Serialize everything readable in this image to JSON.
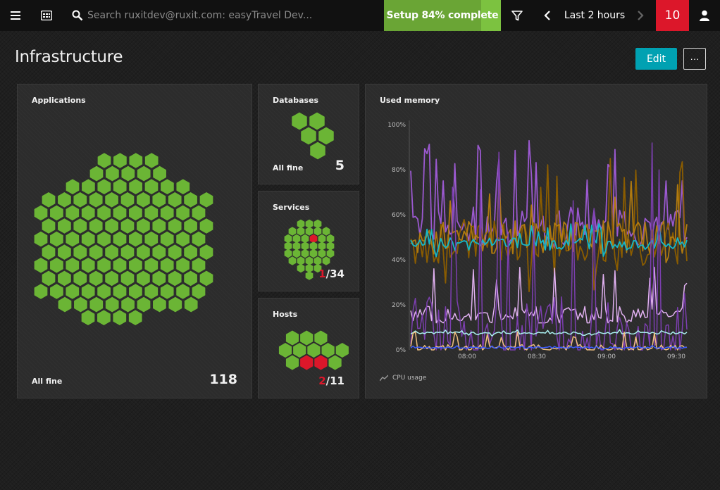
{
  "topbar": {
    "search_placeholder": "Search ruxitdev@ruxit.com: easyTravel Dev...",
    "setup_label": "Setup 84% complete",
    "setup_progress": 0.84,
    "timeframe_label": "Last 2 hours",
    "problems_count": "10"
  },
  "page": {
    "title": "Infrastructure",
    "edit_label": "Edit",
    "more_label": "···"
  },
  "tiles": {
    "applications": {
      "title": "Applications",
      "status": "All fine",
      "count": "118",
      "total": 118,
      "unhealthy": 0
    },
    "databases": {
      "title": "Databases",
      "status": "All fine",
      "count": "5",
      "total": 5,
      "unhealthy": 0
    },
    "services": {
      "title": "Services",
      "unhealthy": "1",
      "total_label": "/34",
      "total": 34
    },
    "hosts": {
      "title": "Hosts",
      "unhealthy": "2",
      "total_label": "/11",
      "total": 11
    },
    "memory": {
      "title": "Used memory",
      "legend": "CPU usage"
    }
  },
  "colors": {
    "healthy": "#6bb535",
    "problem": "#dc172a",
    "accent": "#00a1b2",
    "badge": "#dc172a",
    "setup": "#6aa535"
  },
  "icons": [
    "menu-icon",
    "dashboard-icon",
    "search-icon",
    "filter-icon",
    "chevron-left-icon",
    "chevron-right-icon",
    "user-icon",
    "line-chart-icon"
  ],
  "chart_data": {
    "type": "line",
    "title": "Used memory",
    "yticks": [
      "0%",
      "20%",
      "40%",
      "60%",
      "80%",
      "100%"
    ],
    "xticks": [
      "08:00",
      "08:30",
      "09:00",
      "09:30"
    ],
    "ylim": [
      0,
      100
    ],
    "grid": false,
    "legend": "bottom-left",
    "legend_label": "CPU usage",
    "series": [
      {
        "color": "#9b59d0",
        "min": 45,
        "max": 93,
        "typical": 55
      },
      {
        "color": "#8a5c00",
        "min": 25,
        "max": 85,
        "typical": 48
      },
      {
        "color": "#b07a10",
        "min": 35,
        "max": 78,
        "typical": 50
      },
      {
        "color": "#14b8c8",
        "min": 40,
        "max": 56,
        "typical": 47
      },
      {
        "color": "#e0b0f0",
        "min": 12,
        "max": 38,
        "typical": 15
      },
      {
        "color": "#7c3fb0",
        "min": 0,
        "max": 93,
        "typical": 9
      },
      {
        "color": "#aaf0f0",
        "min": 6,
        "max": 9,
        "typical": 7.5
      },
      {
        "color": "#f0c080",
        "min": 0,
        "max": 8,
        "typical": 1
      },
      {
        "color": "#3c5cff",
        "min": 0,
        "max": 2,
        "typical": 1
      }
    ]
  }
}
